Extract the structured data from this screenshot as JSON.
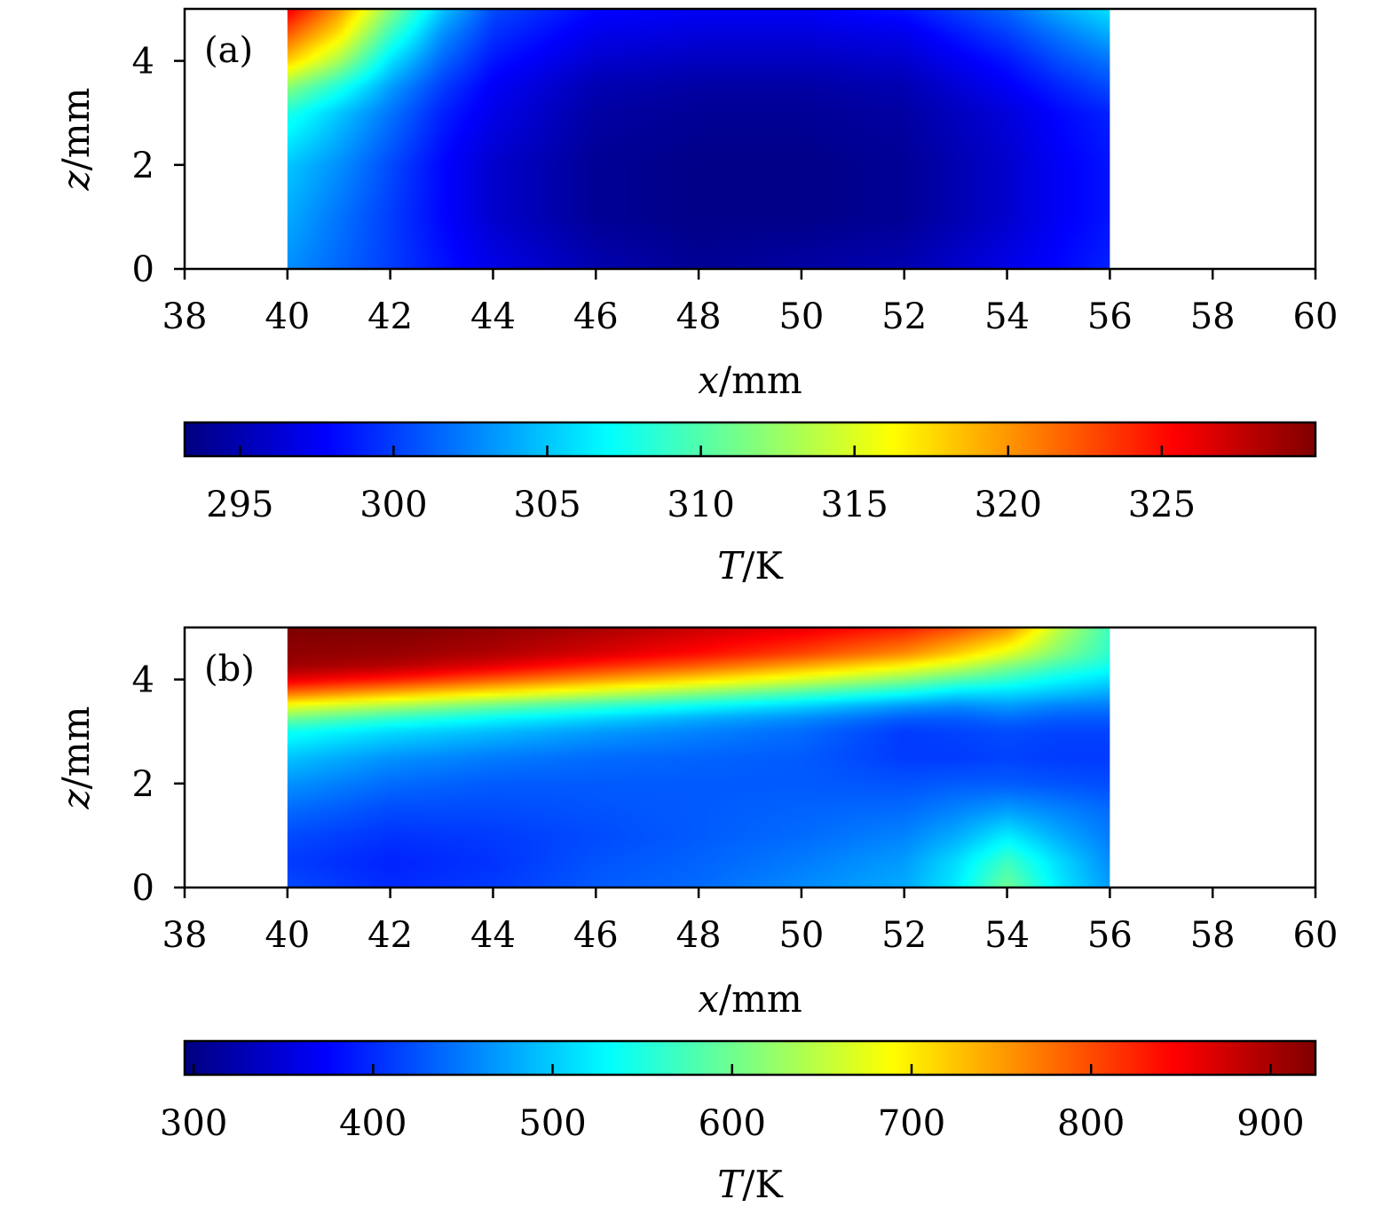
{
  "chart_data": [
    {
      "type": "heatmap",
      "panel_label": "(a)",
      "xlabel": {
        "var": "x",
        "unit": "/mm"
      },
      "ylabel": {
        "var": "z",
        "unit": "/mm"
      },
      "xlim": [
        38,
        60
      ],
      "ylim": [
        0,
        5
      ],
      "xticks": [
        38,
        40,
        42,
        44,
        46,
        48,
        50,
        52,
        54,
        56,
        58,
        60
      ],
      "yticks": [
        0,
        2,
        4
      ],
      "data_extent": {
        "x": [
          40,
          56
        ],
        "z": [
          0,
          5
        ]
      },
      "x": [
        40,
        41,
        42,
        43,
        44,
        46,
        48,
        50,
        52,
        54,
        55,
        56
      ],
      "z": [
        0,
        1,
        2,
        3,
        3.5,
        4,
        4.5,
        5
      ],
      "values": [
        [
          303,
          301.5,
          300,
          298.5,
          297,
          295,
          294,
          294.5,
          295,
          297,
          298,
          299
        ],
        [
          304,
          302,
          300,
          298,
          296,
          294,
          293.5,
          293.5,
          294,
          296,
          297.5,
          298.5
        ],
        [
          305,
          303,
          300.5,
          298,
          296,
          294,
          293.5,
          293.5,
          294,
          296,
          297.5,
          298.5
        ],
        [
          308,
          305,
          302,
          299,
          297,
          294.5,
          294,
          294,
          294.5,
          296.5,
          298,
          299
        ],
        [
          312,
          308,
          303.5,
          300,
          297.5,
          295,
          294.5,
          294.5,
          295,
          297.5,
          299,
          300.5
        ],
        [
          318,
          313,
          306,
          301.5,
          298.5,
          296,
          295.5,
          295.5,
          296,
          298.5,
          300.5,
          302
        ],
        [
          322,
          317,
          309,
          303,
          299.5,
          297,
          296.5,
          296.5,
          297,
          300,
          302,
          304
        ],
        [
          326,
          320,
          312,
          305,
          300.5,
          298,
          297.5,
          297.5,
          298.5,
          301.5,
          304,
          306
        ]
      ],
      "colorbar": {
        "label": {
          "var": "T",
          "unit": "/K"
        },
        "range": [
          293.2,
          330
        ],
        "ticks": [
          295,
          300,
          305,
          310,
          315,
          320,
          325
        ]
      }
    },
    {
      "type": "heatmap",
      "panel_label": "(b)",
      "xlabel": {
        "var": "x",
        "unit": "/mm"
      },
      "ylabel": {
        "var": "z",
        "unit": "/mm"
      },
      "xlim": [
        38,
        60
      ],
      "ylim": [
        0,
        5
      ],
      "xticks": [
        38,
        40,
        42,
        44,
        46,
        48,
        50,
        52,
        54,
        56,
        58,
        60
      ],
      "yticks": [
        0,
        2,
        4
      ],
      "data_extent": {
        "x": [
          40,
          56
        ],
        "z": [
          0,
          5
        ]
      },
      "x": [
        40,
        42,
        44,
        46,
        48,
        50,
        52,
        53,
        54,
        55,
        56
      ],
      "z": [
        0,
        0.5,
        1,
        1.5,
        2,
        2.5,
        3,
        3.25,
        3.5,
        3.75,
        4,
        4.25,
        4.5,
        5
      ],
      "values": [
        [
          420,
          400,
          410,
          430,
          440,
          460,
          480,
          520,
          600,
          520,
          470
        ],
        [
          410,
          395,
          405,
          425,
          435,
          450,
          470,
          510,
          570,
          510,
          460
        ],
        [
          420,
          405,
          410,
          420,
          430,
          440,
          455,
          480,
          520,
          480,
          450
        ],
        [
          440,
          420,
          420,
          425,
          430,
          435,
          440,
          455,
          470,
          455,
          440
        ],
        [
          465,
          440,
          430,
          430,
          430,
          430,
          425,
          430,
          430,
          425,
          420
        ],
        [
          495,
          465,
          450,
          440,
          435,
          430,
          410,
          410,
          415,
          410,
          410
        ],
        [
          540,
          510,
          490,
          470,
          455,
          440,
          410,
          415,
          420,
          415,
          415
        ],
        [
          600,
          560,
          530,
          505,
          480,
          460,
          430,
          430,
          440,
          430,
          430
        ],
        [
          680,
          640,
          600,
          565,
          535,
          505,
          470,
          460,
          470,
          455,
          450
        ],
        [
          780,
          740,
          700,
          660,
          620,
          580,
          540,
          515,
          510,
          495,
          480
        ],
        [
          860,
          830,
          790,
          750,
          710,
          665,
          615,
          585,
          560,
          530,
          510
        ],
        [
          905,
          890,
          860,
          820,
          785,
          740,
          690,
          655,
          610,
          570,
          540
        ],
        [
          915,
          910,
          895,
          870,
          840,
          805,
          760,
          720,
          670,
          610,
          560
        ],
        [
          925,
          925,
          915,
          900,
          880,
          860,
          830,
          800,
          760,
          650,
          570
        ]
      ],
      "colorbar": {
        "label": {
          "var": "T",
          "unit": "/K"
        },
        "range": [
          295,
          925
        ],
        "ticks": [
          300,
          400,
          500,
          600,
          700,
          800,
          900
        ]
      }
    }
  ]
}
